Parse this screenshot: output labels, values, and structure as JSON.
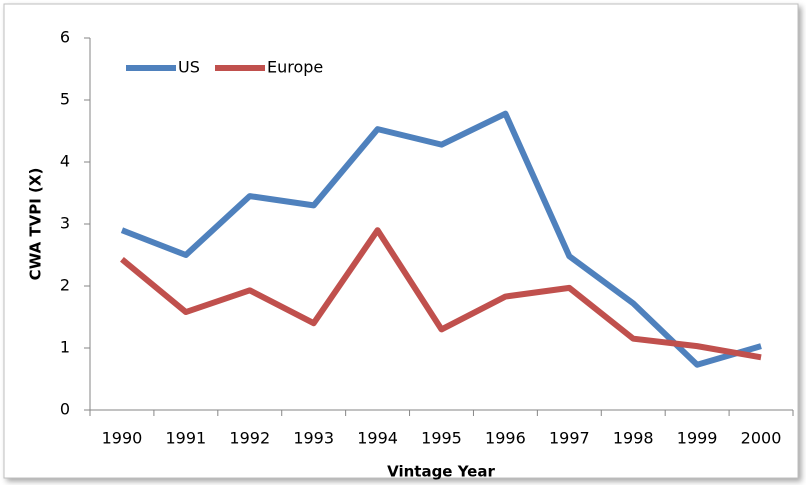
{
  "chart_data": {
    "type": "line",
    "categories": [
      "1990",
      "1991",
      "1992",
      "1993",
      "1994",
      "1995",
      "1996",
      "1997",
      "1998",
      "1999",
      "2000"
    ],
    "series": [
      {
        "name": "US",
        "color": "#4f81bd",
        "values": [
          2.9,
          2.5,
          3.45,
          3.3,
          4.53,
          4.28,
          4.78,
          2.48,
          1.72,
          0.73,
          1.03
        ]
      },
      {
        "name": "Europe",
        "color": "#c0504d",
        "values": [
          2.43,
          1.58,
          1.93,
          1.4,
          2.9,
          1.3,
          1.83,
          1.97,
          1.15,
          1.03,
          0.85
        ]
      }
    ],
    "ylim": [
      0,
      6
    ],
    "yticks": [
      0,
      1,
      2,
      3,
      4,
      5,
      6
    ],
    "xlabel": "Vintage Year",
    "ylabel": "CWA TVPI  (X)",
    "grid": false,
    "legend": "top-left"
  }
}
